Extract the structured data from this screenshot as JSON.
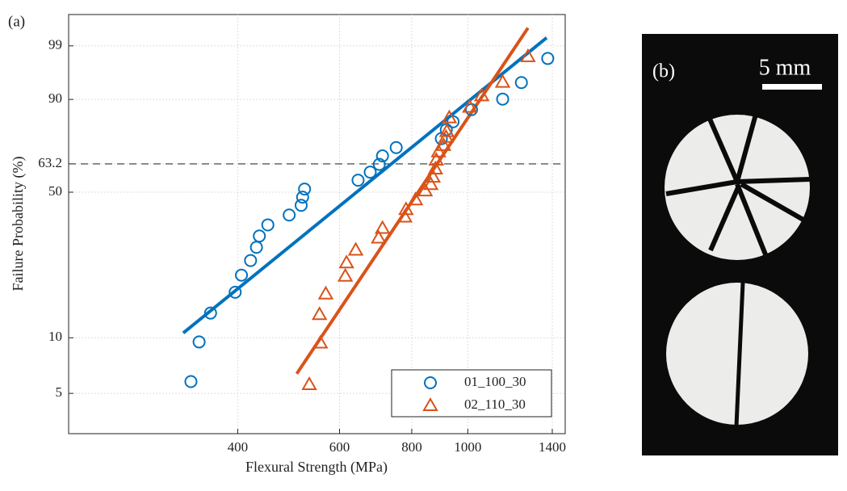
{
  "chart_data": {
    "type": "scatter",
    "panel_label": "(a)",
    "x_label": "Flexural Strength (MPa)",
    "y_label": "Failure Probability (%)",
    "xscale": "log",
    "yscale": "weibull",
    "grid": true,
    "legend": "lower right",
    "xlim": [
      204,
      1474
    ],
    "xticks": [
      400,
      600,
      800,
      1000,
      1400
    ],
    "ylim": [
      3,
      99.9
    ],
    "yticks": [
      5,
      10,
      50,
      63.2,
      90,
      99
    ],
    "reference_line": 63.2,
    "series": [
      {
        "name": "01_100_30",
        "color": "#0072bd",
        "marker": "circle",
        "x": [
          332,
          343,
          359,
          396,
          406,
          421,
          431,
          436,
          451,
          491,
          515,
          518,
          522,
          646,
          678,
          703,
          712,
          752,
          900,
          918,
          943,
          1015,
          1149,
          1238,
          1375
        ],
        "values": [
          5.8,
          9.5,
          13.5,
          17.3,
          21.1,
          24.9,
          28.8,
          32.5,
          36.5,
          40.3,
          44.3,
          47.8,
          51.4,
          55.5,
          59.3,
          63,
          67,
          70.9,
          75,
          78.9,
          82.2,
          86.7,
          90.1,
          94.3,
          98
        ]
      },
      {
        "name": "02_110_30",
        "color": "#d95319",
        "marker": "triangle",
        "x": [
          532,
          556,
          554,
          568,
          614,
          617,
          640,
          701,
          712,
          778,
          782,
          812,
          844,
          863,
          871,
          879,
          882,
          890,
          908,
          917,
          920,
          929,
          1008,
          1057,
          1149,
          1271
        ],
        "values": [
          5.6,
          9.4,
          13.3,
          17,
          20.9,
          24.3,
          28,
          31.9,
          35.3,
          39.6,
          42.6,
          46.7,
          50.7,
          53.6,
          57,
          60.9,
          65.1,
          69,
          72,
          75.7,
          78.2,
          83.8,
          87.6,
          91.1,
          94.4,
          98.2
        ]
      }
    ],
    "fits": [
      {
        "color": "#0072bd",
        "x": [
          322,
          1369
        ],
        "values": [
          10.6,
          99.4
        ]
      },
      {
        "color": "#d95319",
        "x": [
          506,
          1271
        ],
        "values": [
          6.4,
          99.7
        ]
      }
    ]
  },
  "photo": {
    "label": "(b)",
    "scale_bar": "5 mm"
  }
}
